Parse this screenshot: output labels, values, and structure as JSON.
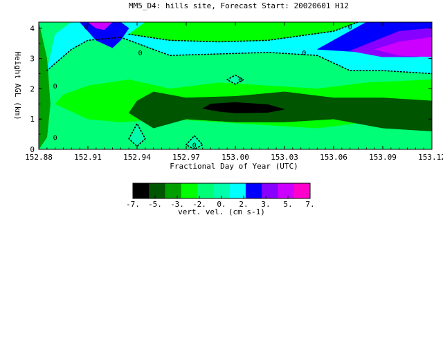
{
  "chart_data": {
    "type": "heatmap",
    "title": "MM5_D4: hills site,  Forecast Start: 20020601 H12",
    "xlabel": "Fractional Day of Year (UTC)",
    "ylabel": "Height AGL (km)",
    "xlim": [
      152.88,
      153.12
    ],
    "ylim": [
      0,
      4.2
    ],
    "x_ticks": [
      152.88,
      152.91,
      152.94,
      152.97,
      153.0,
      153.03,
      153.06,
      153.09,
      153.12
    ],
    "x_tick_labels": [
      "152.88",
      "152.91",
      "152.94",
      "152.97",
      "153.00",
      "153.03",
      "153.06",
      "153.09",
      "153.12"
    ],
    "y_ticks": [
      0,
      1,
      2,
      3,
      4
    ],
    "y_tick_labels": [
      "0",
      "1",
      "2",
      "3",
      "4"
    ],
    "zero_contour_labels": [
      "0",
      "0",
      "0",
      "0",
      "0",
      "0",
      "0",
      "0"
    ],
    "colorbar": {
      "label": "vert. vel. (cm s-1)",
      "tick_labels": [
        "-7.",
        "-5.",
        "-3.",
        "-2.",
        "0.",
        "2.",
        "3.",
        "5.",
        "7."
      ],
      "colors": [
        "#000000",
        "#005500",
        "#00a000",
        "#00ff00",
        "#00ff77",
        "#00ffaa",
        "#00ffff",
        "#0000ff",
        "#8800ff",
        "#cc00ff",
        "#ff00cc"
      ]
    },
    "regions": [
      {
        "name": "weak-ascent-background",
        "class": 4,
        "x": [
          152.88,
          153.12,
          153.12,
          152.88
        ],
        "y": [
          0,
          0,
          4.2,
          4.2
        ]
      },
      {
        "name": "upper-cyan-band",
        "class": 6,
        "x": [
          152.885,
          152.9,
          152.91,
          152.93,
          152.96,
          152.99,
          153.02,
          153.05,
          153.07,
          153.09,
          153.12,
          153.12,
          153.09,
          153.06,
          153.03,
          153.0,
          152.97,
          152.945,
          152.925,
          152.91,
          152.9,
          152.89
        ],
        "y": [
          2.6,
          3.3,
          3.6,
          3.7,
          3.1,
          3.15,
          3.2,
          3.1,
          2.6,
          2.6,
          2.5,
          4.2,
          4.2,
          4.2,
          4.2,
          4.2,
          4.2,
          4.2,
          4.2,
          4.2,
          4.2,
          3.8
        ]
      },
      {
        "name": "upper-green-band",
        "class": 3,
        "x": [
          152.935,
          152.96,
          152.99,
          153.02,
          153.04,
          153.06,
          153.075,
          153.06,
          153.03,
          153.0,
          152.97,
          152.945
        ],
        "y": [
          3.8,
          3.6,
          3.55,
          3.6,
          3.75,
          3.9,
          4.2,
          4.2,
          4.2,
          4.2,
          4.2,
          4.2
        ]
      },
      {
        "name": "upper-left-ascent",
        "class": 7,
        "x": [
          152.905,
          152.915,
          152.925,
          152.93,
          152.935,
          152.93
        ],
        "y": [
          4.2,
          3.6,
          3.35,
          3.6,
          4.0,
          4.2
        ]
      },
      {
        "name": "upper-left-ascent-core",
        "class": 9,
        "x": [
          152.91,
          152.915,
          152.92,
          152.925
        ],
        "y": [
          4.2,
          4.0,
          3.95,
          4.2
        ]
      },
      {
        "name": "upper-right-ascent",
        "class": 7,
        "x": [
          153.05,
          153.08,
          153.1,
          153.12,
          153.12,
          153.1,
          153.08
        ],
        "y": [
          3.3,
          3.2,
          3.15,
          3.2,
          4.2,
          4.2,
          4.2
        ]
      },
      {
        "name": "upper-right-ascent-mid",
        "class": 8,
        "x": [
          153.07,
          153.09,
          153.11,
          153.12,
          153.12,
          153.1
        ],
        "y": [
          3.25,
          3.05,
          3.05,
          3.1,
          4.0,
          3.9
        ]
      },
      {
        "name": "upper-right-ascent-core",
        "class": 9,
        "x": [
          153.085,
          153.1,
          153.12,
          153.12,
          153.1
        ],
        "y": [
          3.3,
          3.1,
          3.05,
          3.7,
          3.55
        ]
      },
      {
        "name": "left-edge-descent",
        "class": 2,
        "x": [
          152.88,
          152.885,
          152.887,
          152.885,
          152.88
        ],
        "y": [
          0,
          0.4,
          1.5,
          3.0,
          4.2
        ]
      },
      {
        "name": "lower-descent-zone",
        "class": 3,
        "x": [
          152.89,
          152.91,
          152.93,
          152.96,
          152.99,
          153.02,
          153.05,
          153.08,
          153.12,
          153.12,
          153.08,
          153.05,
          153.02,
          152.99,
          152.96,
          152.935,
          152.91,
          152.895
        ],
        "y": [
          1.5,
          1.0,
          0.9,
          1.0,
          0.9,
          0.8,
          0.7,
          0.9,
          0.6,
          2.3,
          2.2,
          2.0,
          2.1,
          2.2,
          2.0,
          2.3,
          2.1,
          1.8
        ]
      },
      {
        "name": "lower-descent-dark",
        "class": 1,
        "x": [
          152.935,
          152.95,
          152.97,
          153.0,
          153.03,
          153.06,
          153.09,
          153.12,
          153.12,
          153.09,
          153.06,
          153.03,
          153.0,
          152.97,
          152.95,
          152.94
        ],
        "y": [
          1.2,
          0.7,
          1.0,
          0.9,
          0.9,
          1.0,
          0.7,
          0.6,
          1.6,
          1.7,
          1.7,
          1.9,
          1.75,
          1.7,
          1.9,
          1.6
        ]
      },
      {
        "name": "lower-descent-core",
        "class": 0,
        "x": [
          152.98,
          152.99,
          153.0,
          153.02,
          153.03,
          153.02,
          153.0,
          152.985
        ],
        "y": [
          1.35,
          1.25,
          1.2,
          1.22,
          1.32,
          1.48,
          1.55,
          1.5
        ]
      },
      {
        "name": "left-ascent-pocket",
        "class": 5,
        "x": [
          152.935,
          152.94,
          152.945,
          152.94
        ],
        "y": [
          0.35,
          0.85,
          0.35,
          0.1
        ]
      },
      {
        "name": "middle-ascent-pocket",
        "class": 5,
        "x": [
          152.97,
          152.975,
          152.98,
          152.975
        ],
        "y": [
          0.15,
          0.45,
          0.15,
          0.0
        ]
      },
      {
        "name": "center-ascent-pocket",
        "class": 5,
        "x": [
          152.995,
          153.0,
          153.005,
          153.0
        ],
        "y": [
          2.3,
          2.45,
          2.3,
          2.15
        ]
      }
    ],
    "zero_contours": [
      {
        "name": "upper-zero-contour",
        "x": [
          152.885,
          152.9,
          152.91,
          152.93,
          152.96,
          152.99,
          153.02,
          153.05,
          153.07,
          153.09,
          153.12
        ],
        "y": [
          2.6,
          3.3,
          3.6,
          3.7,
          3.1,
          3.15,
          3.2,
          3.1,
          2.6,
          2.6,
          2.5
        ]
      },
      {
        "name": "top-zero-contour",
        "x": [
          152.935,
          152.96,
          152.99,
          153.02,
          153.04,
          153.06,
          153.075
        ],
        "y": [
          3.8,
          3.6,
          3.55,
          3.6,
          3.75,
          3.9,
          4.2
        ]
      },
      {
        "name": "left-pocket-contour",
        "x": [
          152.935,
          152.94,
          152.945,
          152.94,
          152.935
        ],
        "y": [
          0.35,
          0.85,
          0.35,
          0.1,
          0.35
        ]
      },
      {
        "name": "middle-pocket-contour",
        "x": [
          152.97,
          152.975,
          152.98,
          152.975,
          152.97
        ],
        "y": [
          0.15,
          0.45,
          0.15,
          0.0,
          0.15
        ]
      },
      {
        "name": "center-pocket-contour",
        "x": [
          152.995,
          153.0,
          153.005,
          153.0,
          152.995
        ],
        "y": [
          2.3,
          2.45,
          2.3,
          2.15,
          2.3
        ]
      }
    ]
  }
}
